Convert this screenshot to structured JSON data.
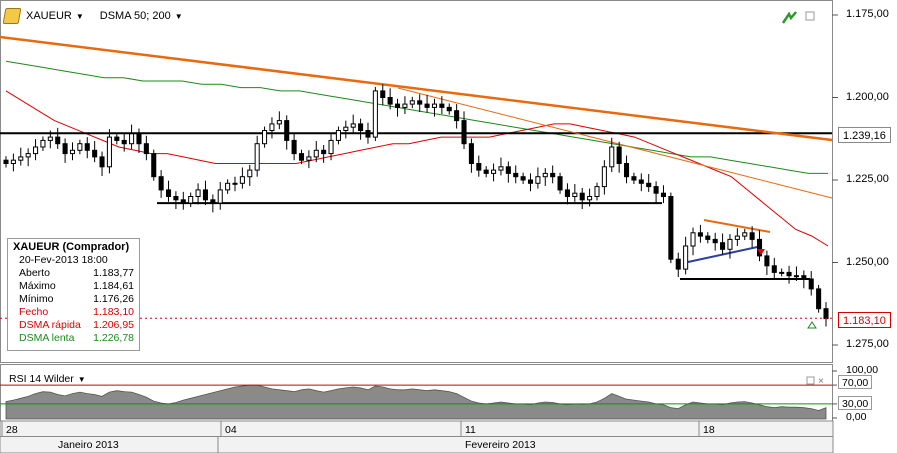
{
  "toolbar": {
    "symbol": "XAUEUR",
    "indicator": "DSMA 50; 200"
  },
  "infobox": {
    "title": "XAUEUR (Comprador)",
    "datetime": "20-Fev-2013 18:00",
    "rows": [
      {
        "label": "Aberto",
        "value": "1.183,77",
        "color": "#000000"
      },
      {
        "label": "Máximo",
        "value": "1.184,61",
        "color": "#000000"
      },
      {
        "label": "Mínimo",
        "value": "1.176,26",
        "color": "#000000"
      },
      {
        "label": "Fecho",
        "value": "1.183,10",
        "color": "#d40000"
      },
      {
        "label": "DSMA rápida",
        "value": "1.206,95",
        "color": "#e00000"
      },
      {
        "label": "DSMA lenta",
        "value": "1.226,78",
        "color": "#1b8a1b"
      }
    ]
  },
  "price_axis": {
    "ticks": [
      "1.275,00",
      "1.250,00",
      "1.225,00",
      "1.200,00",
      "1.175,00"
    ],
    "tags": {
      "resistance": "1.239,16",
      "last": "1.183,10"
    }
  },
  "rsi": {
    "title": "RSI 14 Wilder",
    "ticks": [
      "100,00",
      "70,00",
      "30,00",
      "0,00"
    ],
    "tags": {
      "upper": "70,00",
      "lower": "30,00"
    }
  },
  "time_axis": {
    "days": [
      "28",
      "04",
      "11",
      "18"
    ],
    "months": [
      "Janeiro 2013",
      "Fevereiro 2013"
    ]
  },
  "colors": {
    "candle": "#000000",
    "fast_ma": "#e00000",
    "slow_ma": "#1b8a1b",
    "trend_thick": "#e86a10",
    "trend_thin": "#e86a10",
    "rsi_fill": "#8a8a8a",
    "rsi_upper": "#cc0000",
    "rsi_lower": "#1b8a1b",
    "triangle_top": "#e86a10",
    "triangle_bottom": "#2c3f9a",
    "last_line": "#d40000"
  },
  "chart_data": [
    {
      "type": "candlestick",
      "symbol": "XAUEUR",
      "ylim": [
        1170,
        1282
      ],
      "yticks": [
        1175,
        1200,
        1225,
        1250,
        1275
      ],
      "x_tick_labels": [
        "28",
        "04",
        "11",
        "18"
      ],
      "month_labels": [
        "Janeiro 2013",
        "Fevereiro 2013"
      ],
      "close_path": [
        1230,
        1231,
        1232,
        1233,
        1235,
        1237,
        1238,
        1236,
        1233,
        1234,
        1236,
        1234,
        1232,
        1229,
        1238,
        1237,
        1236,
        1239,
        1236,
        1233,
        1226,
        1222,
        1220,
        1219,
        1218,
        1220,
        1222,
        1219,
        1218,
        1222,
        1224,
        1224,
        1226,
        1228,
        1236,
        1240,
        1242,
        1243,
        1237,
        1233,
        1231,
        1232,
        1234,
        1233,
        1237,
        1240,
        1241,
        1242,
        1240,
        1238,
        1252,
        1250,
        1248,
        1247,
        1248,
        1249,
        1248,
        1247,
        1248,
        1247,
        1246,
        1243,
        1236,
        1230,
        1228,
        1227,
        1228,
        1229,
        1227,
        1226,
        1225,
        1224,
        1226,
        1227,
        1226,
        1222,
        1220,
        1221,
        1219,
        1220,
        1223,
        1229,
        1235,
        1230,
        1226,
        1225,
        1224,
        1223,
        1221,
        1220,
        1201,
        1198,
        1205,
        1209,
        1208,
        1207,
        1206,
        1204,
        1207,
        1208,
        1209,
        1207,
        1202,
        1199,
        1197,
        1197,
        1196,
        1196,
        1195,
        1192,
        1186,
        1183
      ],
      "fast_ma": [
        1252,
        1249,
        1246,
        1243,
        1241,
        1239,
        1237,
        1235,
        1234,
        1233,
        1233,
        1232,
        1231,
        1230,
        1230,
        1230,
        1230,
        1230,
        1230,
        1231,
        1232,
        1233,
        1234,
        1235,
        1236,
        1236,
        1237,
        1238,
        1238,
        1238,
        1238,
        1239,
        1240,
        1241,
        1242,
        1242,
        1241,
        1240,
        1239,
        1238,
        1236,
        1234,
        1232,
        1230,
        1228,
        1226,
        1222,
        1218,
        1214,
        1210,
        1208,
        1205
      ],
      "slow_ma": [
        1261,
        1260,
        1259,
        1258,
        1257,
        1256,
        1256,
        1255,
        1255,
        1255,
        1254,
        1254,
        1253,
        1253,
        1252,
        1252,
        1251,
        1250,
        1249,
        1248,
        1247,
        1246,
        1245,
        1244,
        1243,
        1242,
        1241,
        1240,
        1239,
        1238,
        1237,
        1236,
        1235,
        1234,
        1233,
        1232,
        1232,
        1231,
        1230,
        1229,
        1228,
        1227,
        1227
      ],
      "support_levels": [
        1218,
        1195
      ],
      "resistance_level": 1239.16,
      "last_price": 1183.1,
      "series": [
        {
          "name": "DSMA rápida",
          "value": 1206.95
        },
        {
          "name": "DSMA lenta",
          "value": 1226.78
        }
      ]
    },
    {
      "type": "area",
      "name": "RSI 14 Wilder",
      "ylim": [
        0,
        100
      ],
      "yticks": [
        0,
        30,
        70,
        100
      ],
      "levels": [
        30,
        70
      ],
      "values": [
        35,
        38,
        42,
        46,
        52,
        56,
        55,
        50,
        47,
        52,
        55,
        52,
        50,
        46,
        55,
        58,
        56,
        55,
        50,
        44,
        36,
        32,
        30,
        33,
        38,
        42,
        46,
        50,
        54,
        58,
        62,
        66,
        68,
        70,
        70,
        66,
        62,
        60,
        58,
        56,
        60,
        62,
        58,
        55,
        58,
        62,
        64,
        66,
        64,
        60,
        68,
        66,
        62,
        60,
        60,
        62,
        60,
        58,
        60,
        58,
        56,
        52,
        44,
        36,
        32,
        30,
        32,
        34,
        32,
        30,
        30,
        28,
        32,
        34,
        33,
        30,
        28,
        30,
        29,
        30,
        34,
        42,
        52,
        46,
        40,
        38,
        36,
        34,
        30,
        28,
        22,
        20,
        28,
        34,
        32,
        30,
        30,
        28,
        32,
        34,
        35,
        32,
        28,
        24,
        22,
        24,
        23,
        23,
        22,
        20,
        16,
        22
      ]
    }
  ]
}
